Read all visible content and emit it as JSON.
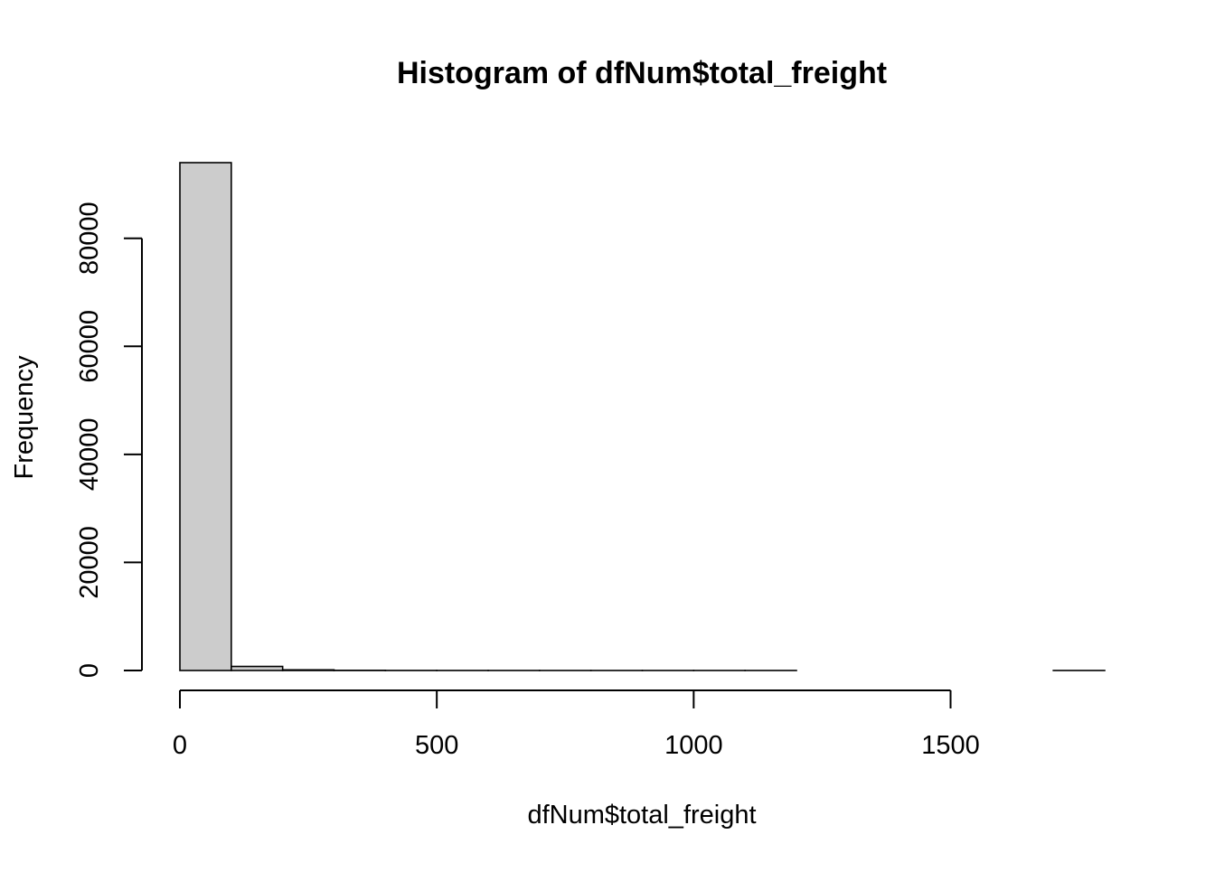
{
  "chart_data": {
    "type": "bar",
    "title": "Histogram of dfNum$total_freight",
    "xlabel": "dfNum$total_freight",
    "ylabel": "Frequency",
    "bin_edges": [
      0,
      100,
      200,
      300,
      400,
      500,
      600,
      700,
      800,
      900,
      1000,
      1100,
      1200,
      1300,
      1400,
      1500,
      1600,
      1700,
      1800
    ],
    "values": [
      94000,
      750,
      120,
      30,
      10,
      5,
      3,
      2,
      1,
      1,
      1,
      1,
      0,
      0,
      0,
      0,
      0,
      1
    ],
    "xlim": [
      0,
      1800
    ],
    "ylim": [
      0,
      94000
    ],
    "x_ticks": [
      0,
      500,
      1000,
      1500
    ],
    "x_tick_labels": [
      "0",
      "500",
      "1000",
      "1500"
    ],
    "y_ticks": [
      0,
      20000,
      40000,
      60000,
      80000
    ],
    "y_tick_labels": [
      "0",
      "20000",
      "40000",
      "60000",
      "80000"
    ],
    "grid": false,
    "colors": {
      "bar_fill": "#cccccc",
      "bar_stroke": "#000000"
    }
  }
}
